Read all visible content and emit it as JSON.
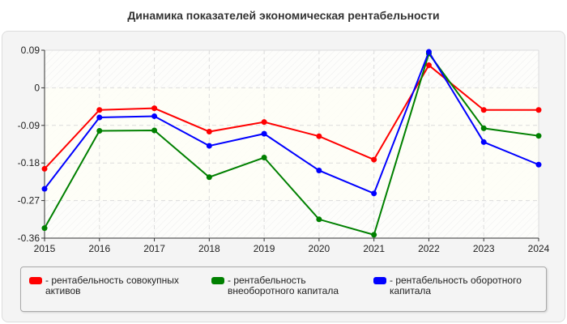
{
  "chart_data": {
    "type": "line",
    "title": "Динамика показателей экономическая рентабельности",
    "x": [
      "2015",
      "2016",
      "2017",
      "2018",
      "2019",
      "2020",
      "2021",
      "2022",
      "2023",
      "2024"
    ],
    "ylim": [
      -0.36,
      0.09
    ],
    "yticks": [
      "0.09",
      "0",
      "-0.09",
      "-0.18",
      "-0.27",
      "-0.36"
    ],
    "ytick_values": [
      0.09,
      0,
      -0.09,
      -0.18,
      -0.27,
      -0.36
    ],
    "grid": true,
    "legend_position": "bottom",
    "series": [
      {
        "name": "- рентабельность совокупных активов",
        "color": "#ff0000",
        "values": [
          -0.194,
          -0.053,
          -0.049,
          -0.105,
          -0.082,
          -0.116,
          -0.172,
          0.054,
          -0.053,
          -0.053
        ]
      },
      {
        "name": "- рентабельность внеоборотного капитала",
        "color": "#008000",
        "values": [
          -0.336,
          -0.103,
          -0.102,
          -0.214,
          -0.167,
          -0.315,
          -0.352,
          0.082,
          -0.097,
          -0.115
        ]
      },
      {
        "name": "- рентабельность оборотного капитала",
        "color": "#0000ff",
        "values": [
          -0.242,
          -0.071,
          -0.068,
          -0.139,
          -0.11,
          -0.198,
          -0.253,
          0.086,
          -0.13,
          -0.184
        ]
      }
    ]
  }
}
